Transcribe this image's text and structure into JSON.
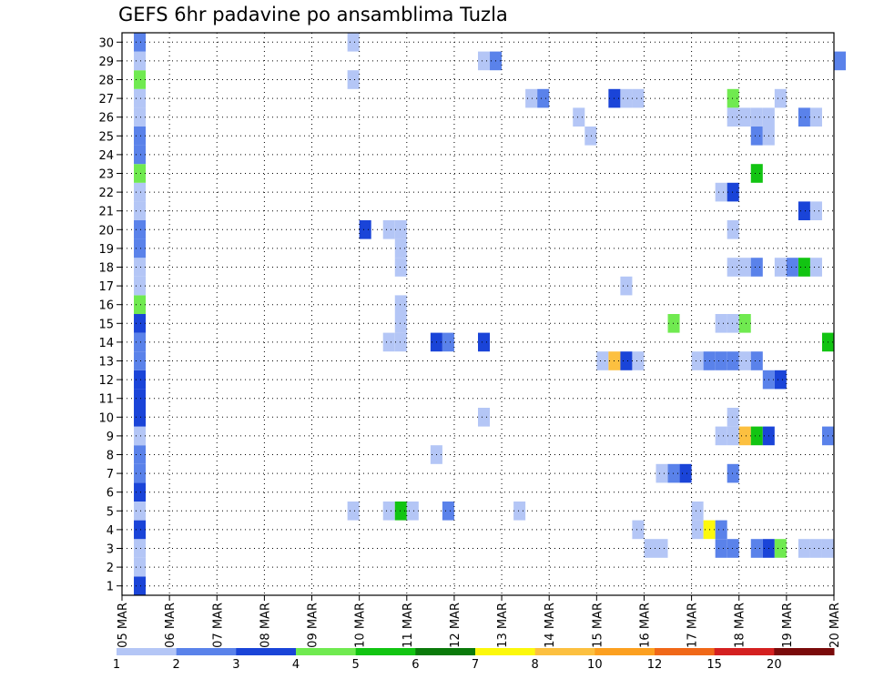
{
  "title": "GEFS 6hr padavine po ansamblima Tuzla",
  "chart_data": {
    "type": "heatmap",
    "title": "GEFS 6hr padavine po ansamblima Tuzla",
    "xlabel": "",
    "ylabel": "",
    "x_tick_labels": [
      "05 MAR",
      "06 MAR",
      "07 MAR",
      "08 MAR",
      "09 MAR",
      "10 MAR",
      "11 MAR",
      "12 MAR",
      "13 MAR",
      "14 MAR",
      "15 MAR",
      "16 MAR",
      "17 MAR",
      "18 MAR",
      "19 MAR",
      "20 MAR"
    ],
    "y_tick_labels": [
      "1",
      "2",
      "3",
      "4",
      "5",
      "6",
      "7",
      "8",
      "9",
      "10",
      "11",
      "12",
      "13",
      "14",
      "15",
      "16",
      "17",
      "18",
      "19",
      "20",
      "21",
      "22",
      "23",
      "24",
      "25",
      "26",
      "27",
      "28",
      "29",
      "30"
    ],
    "xlim": [
      0,
      15
    ],
    "ylim": [
      0.5,
      30.5
    ],
    "grid": true,
    "x_step_days": 0.25,
    "levels": [
      "1",
      "2",
      "3",
      "4",
      "5",
      "6",
      "7",
      "8",
      "10",
      "12",
      "15",
      "20"
    ],
    "colors": [
      "#b4c6f6",
      "#5a82ea",
      "#1a44d8",
      "#70ea50",
      "#12c412",
      "#0a7a0a",
      "#fcf80c",
      "#fcc040",
      "#fca020",
      "#f06818",
      "#d42020",
      "#7a0a0a"
    ],
    "cells": [
      [
        0.25,
        1,
        3
      ],
      [
        0.25,
        2,
        1
      ],
      [
        0.25,
        3,
        1
      ],
      [
        0.25,
        4,
        3
      ],
      [
        0.25,
        5,
        1
      ],
      [
        0.25,
        6,
        3
      ],
      [
        0.25,
        7,
        2
      ],
      [
        0.25,
        8,
        2
      ],
      [
        0.25,
        9,
        1
      ],
      [
        0.25,
        10,
        3
      ],
      [
        0.25,
        11,
        3
      ],
      [
        0.25,
        12,
        3
      ],
      [
        0.25,
        13,
        2
      ],
      [
        0.25,
        14,
        2
      ],
      [
        0.25,
        15,
        3
      ],
      [
        0.25,
        16,
        4
      ],
      [
        0.25,
        17,
        1
      ],
      [
        0.25,
        18,
        1
      ],
      [
        0.25,
        19,
        2
      ],
      [
        0.25,
        20,
        2
      ],
      [
        0.25,
        21,
        1
      ],
      [
        0.25,
        22,
        1
      ],
      [
        0.25,
        23,
        4
      ],
      [
        0.25,
        24,
        2
      ],
      [
        0.25,
        25,
        2
      ],
      [
        0.25,
        26,
        1
      ],
      [
        0.25,
        27,
        1
      ],
      [
        0.25,
        28,
        4
      ],
      [
        0.25,
        29,
        1
      ],
      [
        0.25,
        30,
        2
      ],
      [
        4.75,
        30,
        1
      ],
      [
        4.75,
        28,
        1
      ],
      [
        4.75,
        5,
        1
      ],
      [
        5.0,
        20,
        3
      ],
      [
        5.5,
        20,
        1
      ],
      [
        5.75,
        20,
        1
      ],
      [
        5.75,
        19,
        1
      ],
      [
        5.75,
        18,
        1
      ],
      [
        5.5,
        14,
        1
      ],
      [
        5.75,
        14,
        1
      ],
      [
        5.75,
        15,
        1
      ],
      [
        5.75,
        16,
        1
      ],
      [
        5.5,
        5,
        1
      ],
      [
        5.75,
        5,
        5
      ],
      [
        6.0,
        5,
        1
      ],
      [
        6.5,
        14,
        3
      ],
      [
        6.75,
        14,
        2
      ],
      [
        6.5,
        8,
        1
      ],
      [
        6.75,
        5,
        2
      ],
      [
        7.5,
        29,
        1
      ],
      [
        7.75,
        29,
        2
      ],
      [
        7.5,
        14,
        3
      ],
      [
        7.5,
        10,
        1
      ],
      [
        8.25,
        5,
        1
      ],
      [
        8.5,
        27,
        1
      ],
      [
        8.75,
        27,
        2
      ],
      [
        9.5,
        26,
        1
      ],
      [
        9.75,
        25,
        1
      ],
      [
        10.0,
        13,
        1
      ],
      [
        10.25,
        13,
        8
      ],
      [
        10.5,
        13,
        3
      ],
      [
        10.75,
        13,
        1
      ],
      [
        10.25,
        27,
        3
      ],
      [
        10.5,
        27,
        1
      ],
      [
        10.75,
        27,
        1
      ],
      [
        10.5,
        17,
        1
      ],
      [
        10.75,
        4,
        1
      ],
      [
        11.0,
        3,
        1
      ],
      [
        11.25,
        3,
        1
      ],
      [
        11.25,
        7,
        1
      ],
      [
        11.5,
        7,
        2
      ],
      [
        11.75,
        7,
        3
      ],
      [
        11.5,
        15,
        4
      ],
      [
        12.0,
        13,
        1
      ],
      [
        12.25,
        13,
        2
      ],
      [
        12.5,
        13,
        2
      ],
      [
        12.75,
        13,
        2
      ],
      [
        13.0,
        13,
        1
      ],
      [
        12.0,
        5,
        1
      ],
      [
        12.0,
        4,
        1
      ],
      [
        12.25,
        4,
        7
      ],
      [
        12.5,
        4,
        2
      ],
      [
        12.5,
        3,
        2
      ],
      [
        12.75,
        3,
        2
      ],
      [
        12.5,
        22,
        1
      ],
      [
        12.75,
        22,
        3
      ],
      [
        12.5,
        15,
        1
      ],
      [
        12.75,
        15,
        1
      ],
      [
        13.0,
        15,
        4
      ],
      [
        12.5,
        9,
        1
      ],
      [
        12.75,
        9,
        1
      ],
      [
        13.0,
        9,
        8
      ],
      [
        13.25,
        9,
        5
      ],
      [
        13.5,
        9,
        3
      ],
      [
        12.75,
        27,
        4
      ],
      [
        12.75,
        26,
        1
      ],
      [
        13.0,
        26,
        1
      ],
      [
        13.25,
        26,
        1
      ],
      [
        13.5,
        26,
        1
      ],
      [
        12.75,
        18,
        1
      ],
      [
        13.0,
        18,
        1
      ],
      [
        13.25,
        18,
        2
      ],
      [
        12.75,
        20,
        1
      ],
      [
        12.75,
        10,
        1
      ],
      [
        12.75,
        7,
        2
      ],
      [
        13.25,
        25,
        2
      ],
      [
        13.5,
        25,
        1
      ],
      [
        13.25,
        23,
        5
      ],
      [
        13.25,
        13,
        2
      ],
      [
        13.5,
        12,
        2
      ],
      [
        13.75,
        12,
        3
      ],
      [
        13.25,
        3,
        2
      ],
      [
        13.5,
        3,
        3
      ],
      [
        13.75,
        3,
        4
      ],
      [
        13.75,
        27,
        1
      ],
      [
        13.75,
        18,
        1
      ],
      [
        14.0,
        18,
        2
      ],
      [
        14.25,
        18,
        5
      ],
      [
        14.5,
        18,
        1
      ],
      [
        14.25,
        26,
        2
      ],
      [
        14.5,
        26,
        1
      ],
      [
        14.25,
        21,
        3
      ],
      [
        14.5,
        21,
        1
      ],
      [
        14.25,
        3,
        1
      ],
      [
        14.5,
        3,
        1
      ],
      [
        14.75,
        3,
        1
      ],
      [
        14.75,
        14,
        5
      ],
      [
        14.75,
        9,
        2
      ],
      [
        15.0,
        29,
        2
      ]
    ]
  }
}
